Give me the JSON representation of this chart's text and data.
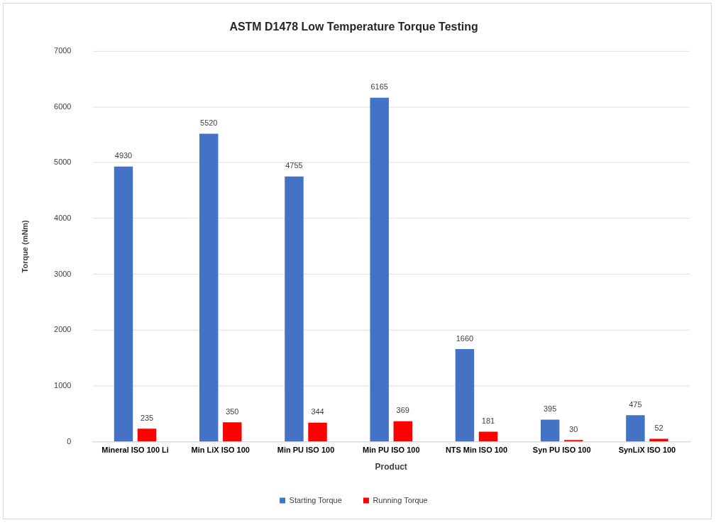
{
  "chart_data": {
    "type": "bar",
    "title": "ASTM D1478 Low Temperature Torque Testing",
    "xlabel": "Product",
    "ylabel": "Torque (mNm)",
    "categories": [
      "Mineral ISO 100 Li",
      "Min LiX ISO 100",
      "Min PU ISO 100",
      "Min PU ISO 100",
      "NTS Min ISO 100",
      "Syn PU ISO 100",
      "SynLiX ISO 100"
    ],
    "series": [
      {
        "name": "Starting Torque",
        "color": "#4472c4",
        "values": [
          4930,
          5520,
          4755,
          6165,
          1660,
          395,
          475
        ]
      },
      {
        "name": "Running Torque",
        "color": "#ff0000",
        "values": [
          235,
          350,
          344,
          369,
          181,
          30,
          52
        ]
      }
    ],
    "ylim": [
      0,
      7000
    ],
    "yticks": [
      0,
      1000,
      2000,
      3000,
      4000,
      5000,
      6000,
      7000
    ],
    "grid": "y",
    "legend": "bottom",
    "data_labels": true
  }
}
